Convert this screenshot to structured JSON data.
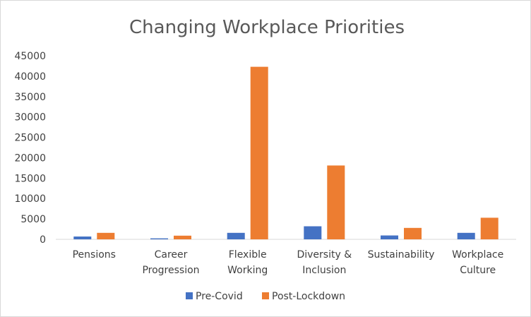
{
  "chart_data": {
    "type": "bar",
    "title": "Changing Workplace Priorities",
    "xlabel": "",
    "ylabel": "",
    "ylim": [
      0,
      45000
    ],
    "yticks": [
      0,
      5000,
      10000,
      15000,
      20000,
      25000,
      30000,
      35000,
      40000,
      45000
    ],
    "grid": false,
    "legend": "bottom",
    "categories": [
      [
        "Pensions"
      ],
      [
        "Career",
        "Progression"
      ],
      [
        "Flexible",
        "Working"
      ],
      [
        "Diversity &",
        "Inclusion"
      ],
      [
        "Sustainability"
      ],
      [
        "Workplace",
        "Culture"
      ]
    ],
    "series": [
      {
        "name": "Pre-Covid",
        "color": "#4472C4",
        "values": [
          700,
          250,
          1600,
          3200,
          950,
          1600
        ]
      },
      {
        "name": "Post-Lockdown",
        "color": "#ED7D31",
        "values": [
          1600,
          900,
          42300,
          18100,
          2800,
          5300
        ]
      }
    ]
  }
}
